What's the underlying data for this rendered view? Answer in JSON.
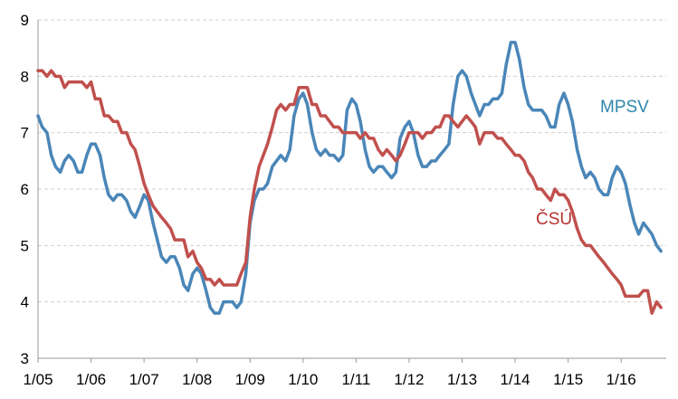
{
  "chart_data": {
    "type": "line",
    "title": "",
    "xlabel": "",
    "ylabel": "",
    "ylim": [
      3,
      9
    ],
    "yticks": [
      3,
      4,
      5,
      6,
      7,
      8,
      9
    ],
    "xlim": [
      2005,
      2016.85
    ],
    "xticks": [
      {
        "label": "1/05",
        "value": 2005
      },
      {
        "label": "1/06",
        "value": 2006
      },
      {
        "label": "1/07",
        "value": 2007
      },
      {
        "label": "1/08",
        "value": 2008
      },
      {
        "label": "1/09",
        "value": 2009
      },
      {
        "label": "1/10",
        "value": 2010
      },
      {
        "label": "1/11",
        "value": 2011
      },
      {
        "label": "1/12",
        "value": 2012
      },
      {
        "label": "1/13",
        "value": 2013
      },
      {
        "label": "1/14",
        "value": 2014
      },
      {
        "label": "1/15",
        "value": 2015
      },
      {
        "label": "1/16",
        "value": 2016
      }
    ],
    "grid": "horizontal dashed",
    "legend": "inline labels",
    "series": [
      {
        "name": "MPSV",
        "color": "#4a86b8",
        "label_color": "#2e86ab",
        "points": [
          [
            2005.0,
            7.3
          ],
          [
            2005.08,
            7.1
          ],
          [
            2005.17,
            7.0
          ],
          [
            2005.25,
            6.6
          ],
          [
            2005.33,
            6.4
          ],
          [
            2005.42,
            6.3
          ],
          [
            2005.5,
            6.5
          ],
          [
            2005.58,
            6.6
          ],
          [
            2005.67,
            6.5
          ],
          [
            2005.75,
            6.3
          ],
          [
            2005.83,
            6.3
          ],
          [
            2005.92,
            6.6
          ],
          [
            2006.0,
            6.8
          ],
          [
            2006.08,
            6.8
          ],
          [
            2006.17,
            6.6
          ],
          [
            2006.25,
            6.2
          ],
          [
            2006.33,
            5.9
          ],
          [
            2006.42,
            5.8
          ],
          [
            2006.5,
            5.9
          ],
          [
            2006.58,
            5.9
          ],
          [
            2006.67,
            5.8
          ],
          [
            2006.75,
            5.6
          ],
          [
            2006.83,
            5.5
          ],
          [
            2006.92,
            5.7
          ],
          [
            2007.0,
            5.9
          ],
          [
            2007.08,
            5.8
          ],
          [
            2007.17,
            5.4
          ],
          [
            2007.25,
            5.1
          ],
          [
            2007.33,
            4.8
          ],
          [
            2007.42,
            4.7
          ],
          [
            2007.5,
            4.8
          ],
          [
            2007.58,
            4.8
          ],
          [
            2007.67,
            4.6
          ],
          [
            2007.75,
            4.3
          ],
          [
            2007.83,
            4.2
          ],
          [
            2007.92,
            4.5
          ],
          [
            2008.0,
            4.6
          ],
          [
            2008.08,
            4.5
          ],
          [
            2008.17,
            4.2
          ],
          [
            2008.25,
            3.9
          ],
          [
            2008.33,
            3.8
          ],
          [
            2008.42,
            3.8
          ],
          [
            2008.5,
            4.0
          ],
          [
            2008.58,
            4.0
          ],
          [
            2008.67,
            4.0
          ],
          [
            2008.75,
            3.9
          ],
          [
            2008.83,
            4.0
          ],
          [
            2008.92,
            4.5
          ],
          [
            2009.0,
            5.4
          ],
          [
            2009.08,
            5.8
          ],
          [
            2009.17,
            6.0
          ],
          [
            2009.25,
            6.0
          ],
          [
            2009.33,
            6.1
          ],
          [
            2009.42,
            6.4
          ],
          [
            2009.5,
            6.5
          ],
          [
            2009.58,
            6.6
          ],
          [
            2009.67,
            6.5
          ],
          [
            2009.75,
            6.7
          ],
          [
            2009.83,
            7.3
          ],
          [
            2009.92,
            7.6
          ],
          [
            2010.0,
            7.7
          ],
          [
            2010.08,
            7.5
          ],
          [
            2010.17,
            7.0
          ],
          [
            2010.25,
            6.7
          ],
          [
            2010.33,
            6.6
          ],
          [
            2010.42,
            6.7
          ],
          [
            2010.5,
            6.6
          ],
          [
            2010.58,
            6.6
          ],
          [
            2010.67,
            6.5
          ],
          [
            2010.75,
            6.6
          ],
          [
            2010.83,
            7.4
          ],
          [
            2010.92,
            7.6
          ],
          [
            2011.0,
            7.5
          ],
          [
            2011.08,
            7.2
          ],
          [
            2011.17,
            6.7
          ],
          [
            2011.25,
            6.4
          ],
          [
            2011.33,
            6.3
          ],
          [
            2011.42,
            6.4
          ],
          [
            2011.5,
            6.4
          ],
          [
            2011.58,
            6.3
          ],
          [
            2011.67,
            6.2
          ],
          [
            2011.75,
            6.3
          ],
          [
            2011.83,
            6.9
          ],
          [
            2011.92,
            7.1
          ],
          [
            2012.0,
            7.2
          ],
          [
            2012.08,
            7.0
          ],
          [
            2012.17,
            6.6
          ],
          [
            2012.25,
            6.4
          ],
          [
            2012.33,
            6.4
          ],
          [
            2012.42,
            6.5
          ],
          [
            2012.5,
            6.5
          ],
          [
            2012.58,
            6.6
          ],
          [
            2012.67,
            6.7
          ],
          [
            2012.75,
            6.8
          ],
          [
            2012.83,
            7.5
          ],
          [
            2012.92,
            8.0
          ],
          [
            2013.0,
            8.1
          ],
          [
            2013.08,
            8.0
          ],
          [
            2013.17,
            7.7
          ],
          [
            2013.25,
            7.5
          ],
          [
            2013.33,
            7.3
          ],
          [
            2013.42,
            7.5
          ],
          [
            2013.5,
            7.5
          ],
          [
            2013.58,
            7.6
          ],
          [
            2013.67,
            7.6
          ],
          [
            2013.75,
            7.7
          ],
          [
            2013.83,
            8.2
          ],
          [
            2013.92,
            8.6
          ],
          [
            2014.0,
            8.6
          ],
          [
            2014.08,
            8.3
          ],
          [
            2014.17,
            7.8
          ],
          [
            2014.25,
            7.5
          ],
          [
            2014.33,
            7.4
          ],
          [
            2014.42,
            7.4
          ],
          [
            2014.5,
            7.4
          ],
          [
            2014.58,
            7.3
          ],
          [
            2014.67,
            7.1
          ],
          [
            2014.75,
            7.1
          ],
          [
            2014.83,
            7.5
          ],
          [
            2014.92,
            7.7
          ],
          [
            2015.0,
            7.5
          ],
          [
            2015.08,
            7.2
          ],
          [
            2015.17,
            6.7
          ],
          [
            2015.25,
            6.4
          ],
          [
            2015.33,
            6.2
          ],
          [
            2015.42,
            6.3
          ],
          [
            2015.5,
            6.2
          ],
          [
            2015.58,
            6.0
          ],
          [
            2015.67,
            5.9
          ],
          [
            2015.75,
            5.9
          ],
          [
            2015.83,
            6.2
          ],
          [
            2015.92,
            6.4
          ],
          [
            2016.0,
            6.3
          ],
          [
            2016.08,
            6.1
          ],
          [
            2016.17,
            5.7
          ],
          [
            2016.25,
            5.4
          ],
          [
            2016.33,
            5.2
          ],
          [
            2016.42,
            5.4
          ],
          [
            2016.5,
            5.3
          ],
          [
            2016.58,
            5.2
          ],
          [
            2016.67,
            5.0
          ],
          [
            2016.75,
            4.9
          ]
        ]
      },
      {
        "name": "ČSÚ",
        "color": "#c0504d",
        "label_color": "#b7312c",
        "points": [
          [
            2005.0,
            8.1
          ],
          [
            2005.08,
            8.1
          ],
          [
            2005.17,
            8.0
          ],
          [
            2005.25,
            8.1
          ],
          [
            2005.33,
            8.0
          ],
          [
            2005.42,
            8.0
          ],
          [
            2005.5,
            7.8
          ],
          [
            2005.58,
            7.9
          ],
          [
            2005.67,
            7.9
          ],
          [
            2005.75,
            7.9
          ],
          [
            2005.83,
            7.9
          ],
          [
            2005.92,
            7.8
          ],
          [
            2006.0,
            7.9
          ],
          [
            2006.08,
            7.6
          ],
          [
            2006.17,
            7.6
          ],
          [
            2006.25,
            7.3
          ],
          [
            2006.33,
            7.3
          ],
          [
            2006.42,
            7.2
          ],
          [
            2006.5,
            7.2
          ],
          [
            2006.58,
            7.0
          ],
          [
            2006.67,
            7.0
          ],
          [
            2006.75,
            6.8
          ],
          [
            2006.83,
            6.7
          ],
          [
            2006.92,
            6.4
          ],
          [
            2007.0,
            6.1
          ],
          [
            2007.08,
            5.9
          ],
          [
            2007.17,
            5.7
          ],
          [
            2007.25,
            5.6
          ],
          [
            2007.33,
            5.5
          ],
          [
            2007.42,
            5.4
          ],
          [
            2007.5,
            5.3
          ],
          [
            2007.58,
            5.1
          ],
          [
            2007.67,
            5.1
          ],
          [
            2007.75,
            5.1
          ],
          [
            2007.83,
            4.8
          ],
          [
            2007.92,
            4.9
          ],
          [
            2008.0,
            4.7
          ],
          [
            2008.08,
            4.6
          ],
          [
            2008.17,
            4.4
          ],
          [
            2008.25,
            4.4
          ],
          [
            2008.33,
            4.3
          ],
          [
            2008.42,
            4.4
          ],
          [
            2008.5,
            4.3
          ],
          [
            2008.58,
            4.3
          ],
          [
            2008.67,
            4.3
          ],
          [
            2008.75,
            4.3
          ],
          [
            2008.83,
            4.5
          ],
          [
            2008.92,
            4.7
          ],
          [
            2009.0,
            5.5
          ],
          [
            2009.08,
            6.0
          ],
          [
            2009.17,
            6.4
          ],
          [
            2009.25,
            6.6
          ],
          [
            2009.33,
            6.8
          ],
          [
            2009.42,
            7.1
          ],
          [
            2009.5,
            7.4
          ],
          [
            2009.58,
            7.5
          ],
          [
            2009.67,
            7.4
          ],
          [
            2009.75,
            7.5
          ],
          [
            2009.83,
            7.5
          ],
          [
            2009.92,
            7.8
          ],
          [
            2010.0,
            7.8
          ],
          [
            2010.08,
            7.8
          ],
          [
            2010.17,
            7.5
          ],
          [
            2010.25,
            7.5
          ],
          [
            2010.33,
            7.3
          ],
          [
            2010.42,
            7.3
          ],
          [
            2010.5,
            7.2
          ],
          [
            2010.58,
            7.1
          ],
          [
            2010.67,
            7.1
          ],
          [
            2010.75,
            7.0
          ],
          [
            2010.83,
            7.0
          ],
          [
            2010.92,
            7.0
          ],
          [
            2011.0,
            7.0
          ],
          [
            2011.08,
            6.9
          ],
          [
            2011.17,
            7.0
          ],
          [
            2011.25,
            6.9
          ],
          [
            2011.33,
            6.9
          ],
          [
            2011.42,
            6.7
          ],
          [
            2011.5,
            6.6
          ],
          [
            2011.58,
            6.7
          ],
          [
            2011.67,
            6.6
          ],
          [
            2011.75,
            6.5
          ],
          [
            2011.83,
            6.6
          ],
          [
            2011.92,
            6.8
          ],
          [
            2012.0,
            7.0
          ],
          [
            2012.08,
            7.0
          ],
          [
            2012.17,
            7.0
          ],
          [
            2012.25,
            6.9
          ],
          [
            2012.33,
            7.0
          ],
          [
            2012.42,
            7.0
          ],
          [
            2012.5,
            7.1
          ],
          [
            2012.58,
            7.1
          ],
          [
            2012.67,
            7.3
          ],
          [
            2012.75,
            7.3
          ],
          [
            2012.83,
            7.2
          ],
          [
            2012.92,
            7.1
          ],
          [
            2013.0,
            7.2
          ],
          [
            2013.08,
            7.3
          ],
          [
            2013.17,
            7.2
          ],
          [
            2013.25,
            7.1
          ],
          [
            2013.33,
            6.8
          ],
          [
            2013.42,
            7.0
          ],
          [
            2013.5,
            7.0
          ],
          [
            2013.58,
            7.0
          ],
          [
            2013.67,
            6.9
          ],
          [
            2013.75,
            6.9
          ],
          [
            2013.83,
            6.8
          ],
          [
            2013.92,
            6.7
          ],
          [
            2014.0,
            6.6
          ],
          [
            2014.08,
            6.6
          ],
          [
            2014.17,
            6.5
          ],
          [
            2014.25,
            6.3
          ],
          [
            2014.33,
            6.2
          ],
          [
            2014.42,
            6.0
          ],
          [
            2014.5,
            6.0
          ],
          [
            2014.58,
            5.9
          ],
          [
            2014.67,
            5.8
          ],
          [
            2014.75,
            6.0
          ],
          [
            2014.83,
            5.9
          ],
          [
            2014.92,
            5.9
          ],
          [
            2015.0,
            5.8
          ],
          [
            2015.08,
            5.6
          ],
          [
            2015.17,
            5.3
          ],
          [
            2015.25,
            5.1
          ],
          [
            2015.33,
            5.0
          ],
          [
            2015.42,
            5.0
          ],
          [
            2015.5,
            4.9
          ],
          [
            2015.58,
            4.8
          ],
          [
            2015.67,
            4.7
          ],
          [
            2015.75,
            4.6
          ],
          [
            2015.83,
            4.5
          ],
          [
            2015.92,
            4.4
          ],
          [
            2016.0,
            4.3
          ],
          [
            2016.08,
            4.1
          ],
          [
            2016.17,
            4.1
          ],
          [
            2016.25,
            4.1
          ],
          [
            2016.33,
            4.1
          ],
          [
            2016.42,
            4.2
          ],
          [
            2016.5,
            4.2
          ],
          [
            2016.58,
            3.8
          ],
          [
            2016.67,
            4.0
          ],
          [
            2016.75,
            3.9
          ]
        ]
      }
    ]
  }
}
